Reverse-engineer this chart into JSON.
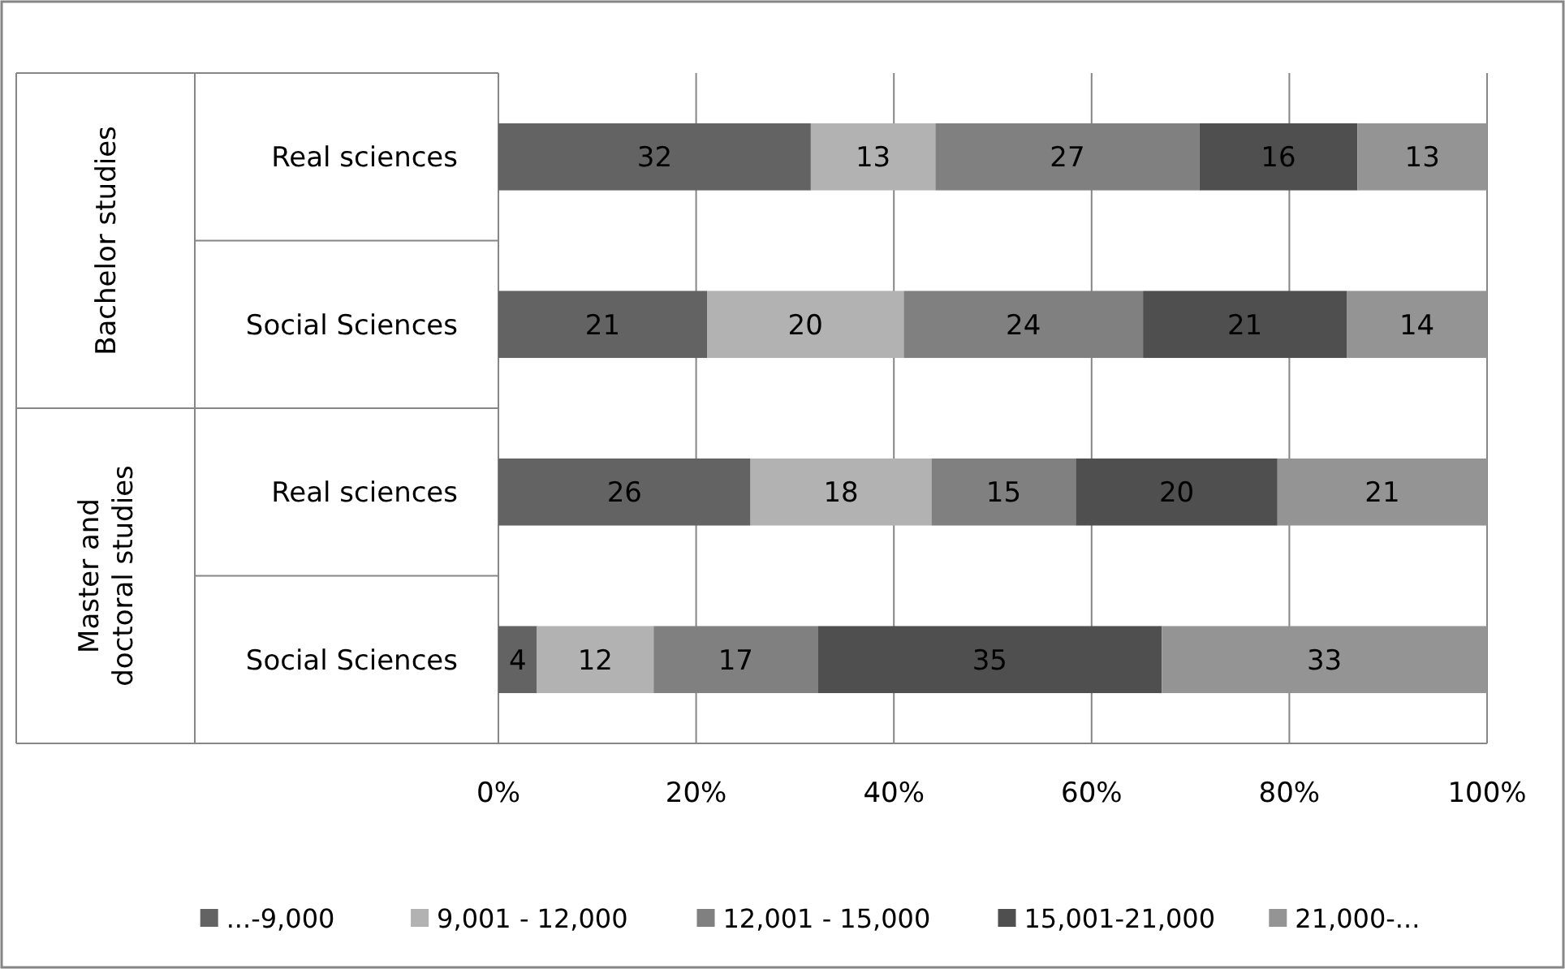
{
  "chart_data": {
    "type": "bar",
    "orientation": "horizontal",
    "stacked": true,
    "categories": [
      "Real sciences",
      "Social Sciences",
      "Real sciences",
      "Social Sciences"
    ],
    "annotations": [
      "Bachelor studies",
      "Master and doctoral studies"
    ],
    "series": [
      {
        "name": "...-9,000",
        "color": "#636363",
        "values": [
          31.6,
          21.1,
          25.5,
          3.9
        ],
        "value_labels": [
          "32",
          "21",
          "26",
          "4"
        ]
      },
      {
        "name": "9,001 - 12,000",
        "color": "#b2b2b2",
        "values": [
          12.6,
          19.9,
          18.3,
          11.8
        ],
        "value_labels": [
          "13",
          "20",
          "18",
          "12"
        ]
      },
      {
        "name": "12,001 - 15,000",
        "color": "#808080",
        "values": [
          26.7,
          24.2,
          14.6,
          16.6
        ],
        "value_labels": [
          "27",
          "24",
          "15",
          "17"
        ]
      },
      {
        "name": "15,001-21,000",
        "color": "#4f4f4f",
        "values": [
          16.0,
          20.6,
          20.4,
          34.8
        ],
        "value_labels": [
          "16",
          "21",
          "20",
          "35"
        ]
      },
      {
        "name": "21,000-...",
        "color": "#949494",
        "values": [
          13.1,
          14.2,
          21.2,
          32.9
        ],
        "value_labels": [
          "13",
          "14",
          "21",
          "33"
        ]
      }
    ],
    "xlim": [
      0,
      100
    ],
    "xticks": [
      {
        "value": 0,
        "label": "0%"
      },
      {
        "value": 20,
        "label": "20%"
      },
      {
        "value": 40,
        "label": "40%"
      },
      {
        "value": 60,
        "label": "60%"
      },
      {
        "value": 80,
        "label": "80%"
      },
      {
        "value": 100,
        "label": "100%"
      }
    ],
    "grid": "x",
    "legend": "bottom"
  }
}
